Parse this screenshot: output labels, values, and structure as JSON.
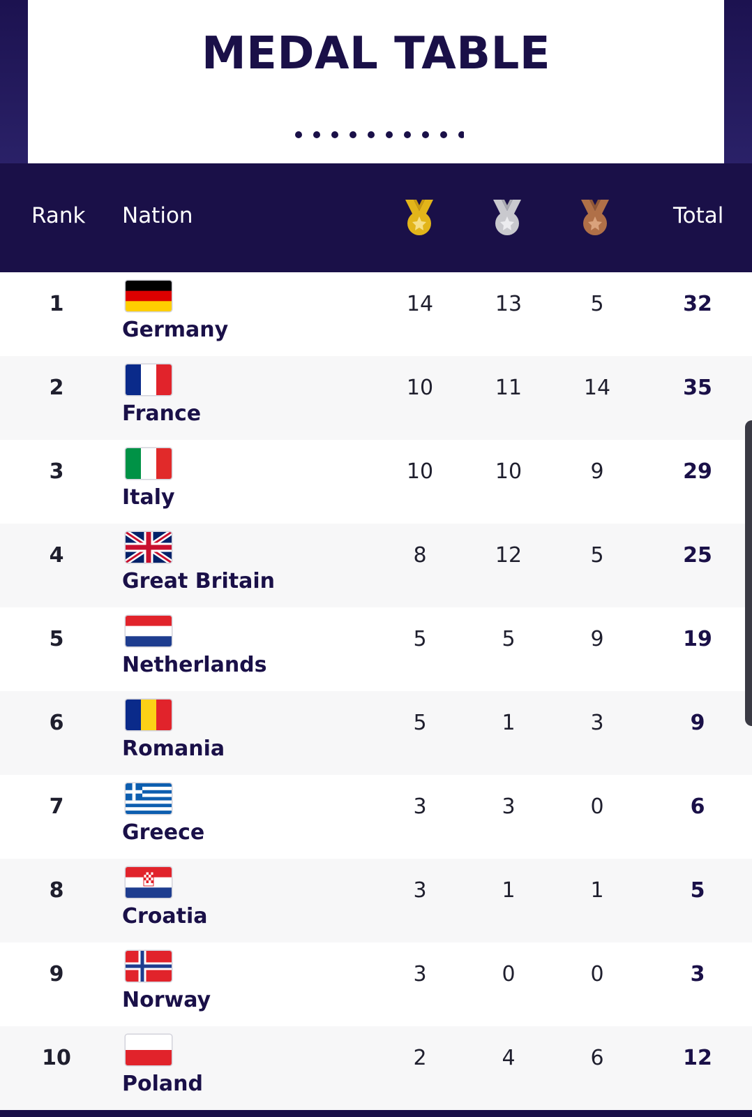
{
  "page": {
    "title": "MEDAL TABLE"
  },
  "header": {
    "rank": "Rank",
    "nation": "Nation",
    "total": "Total",
    "medal_icons": [
      "gold-medal-icon",
      "silver-medal-icon",
      "bronze-medal-icon"
    ]
  },
  "colors": {
    "navy": "#1a1048",
    "gold": "#e2b51a",
    "silver": "#c9c9ce",
    "bronze": "#b07048",
    "row_alt": "#f7f7f8"
  },
  "rows": [
    {
      "rank": "1",
      "nation": "Germany",
      "flag": "germany-flag-icon",
      "gold": "14",
      "silver": "13",
      "bronze": "5",
      "total": "32"
    },
    {
      "rank": "2",
      "nation": "France",
      "flag": "france-flag-icon",
      "gold": "10",
      "silver": "11",
      "bronze": "14",
      "total": "35"
    },
    {
      "rank": "3",
      "nation": "Italy",
      "flag": "italy-flag-icon",
      "gold": "10",
      "silver": "10",
      "bronze": "9",
      "total": "29"
    },
    {
      "rank": "4",
      "nation": "Great Britain",
      "flag": "great-britain-flag-icon",
      "gold": "8",
      "silver": "12",
      "bronze": "5",
      "total": "25"
    },
    {
      "rank": "5",
      "nation": "Netherlands",
      "flag": "netherlands-flag-icon",
      "gold": "5",
      "silver": "5",
      "bronze": "9",
      "total": "19"
    },
    {
      "rank": "6",
      "nation": "Romania",
      "flag": "romania-flag-icon",
      "gold": "5",
      "silver": "1",
      "bronze": "3",
      "total": "9"
    },
    {
      "rank": "7",
      "nation": "Greece",
      "flag": "greece-flag-icon",
      "gold": "3",
      "silver": "3",
      "bronze": "0",
      "total": "6"
    },
    {
      "rank": "8",
      "nation": "Croatia",
      "flag": "croatia-flag-icon",
      "gold": "3",
      "silver": "1",
      "bronze": "1",
      "total": "5"
    },
    {
      "rank": "9",
      "nation": "Norway",
      "flag": "norway-flag-icon",
      "gold": "3",
      "silver": "0",
      "bronze": "0",
      "total": "3"
    },
    {
      "rank": "10",
      "nation": "Poland",
      "flag": "poland-flag-icon",
      "gold": "2",
      "silver": "4",
      "bronze": "6",
      "total": "12"
    }
  ]
}
